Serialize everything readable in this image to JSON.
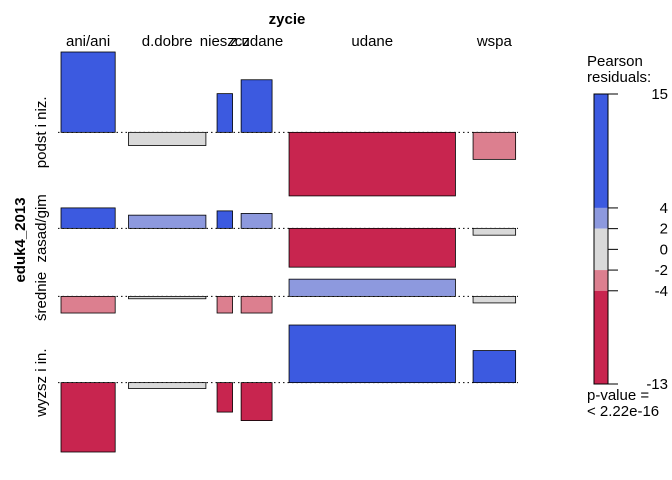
{
  "chart_data": {
    "type": "association",
    "title": "zycie",
    "row_variable": "eduk4_2013",
    "columns": [
      {
        "label": "ani/ani",
        "share": 0.14
      },
      {
        "label": "d.dobre",
        "share": 0.2
      },
      {
        "label": "nieszcz",
        "share": 0.04
      },
      {
        "label": "z.udane",
        "share": 0.08
      },
      {
        "label": "udane",
        "share": 0.43
      },
      {
        "label": "wspa",
        "share": 0.11
      }
    ],
    "rows": [
      {
        "label": "podst i niz.",
        "height": 0.85
      },
      {
        "label": "zasad/gim",
        "height": 0.35
      },
      {
        "label": "średnie",
        "height": 0.2
      },
      {
        "label": "wyzsz i in.",
        "height": 0.75
      }
    ],
    "residuals": [
      [
        11.0,
        -1.8,
        5.3,
        7.2,
        -8.7,
        -3.7
      ],
      [
        4.8,
        3.1,
        4.1,
        3.5,
        -9.1,
        -1.6
      ],
      [
        -2.8,
        -0.4,
        -2.8,
        -2.8,
        2.9,
        -1.1
      ],
      [
        -10.6,
        -0.9,
        -4.5,
        -5.8,
        8.8,
        4.9
      ]
    ],
    "legend": {
      "title_line1": "Pearson",
      "title_line2": "residuals:",
      "ticks": [
        15,
        4,
        2,
        0,
        -2,
        -4,
        -13
      ],
      "tick_labels": [
        "15",
        "4",
        "2",
        "0",
        "-2",
        "-4",
        "-13"
      ],
      "min": -13,
      "max": 15,
      "pvalue_line1": "p-value =",
      "pvalue_line2": "< 2.22e-16"
    },
    "colors": {
      "strong_pos": "#3c5ae0",
      "weak_pos": "#8d99de",
      "neutral": "#d9d9d9",
      "weak_neg": "#dc7f8f",
      "strong_neg": "#c8254f"
    }
  }
}
